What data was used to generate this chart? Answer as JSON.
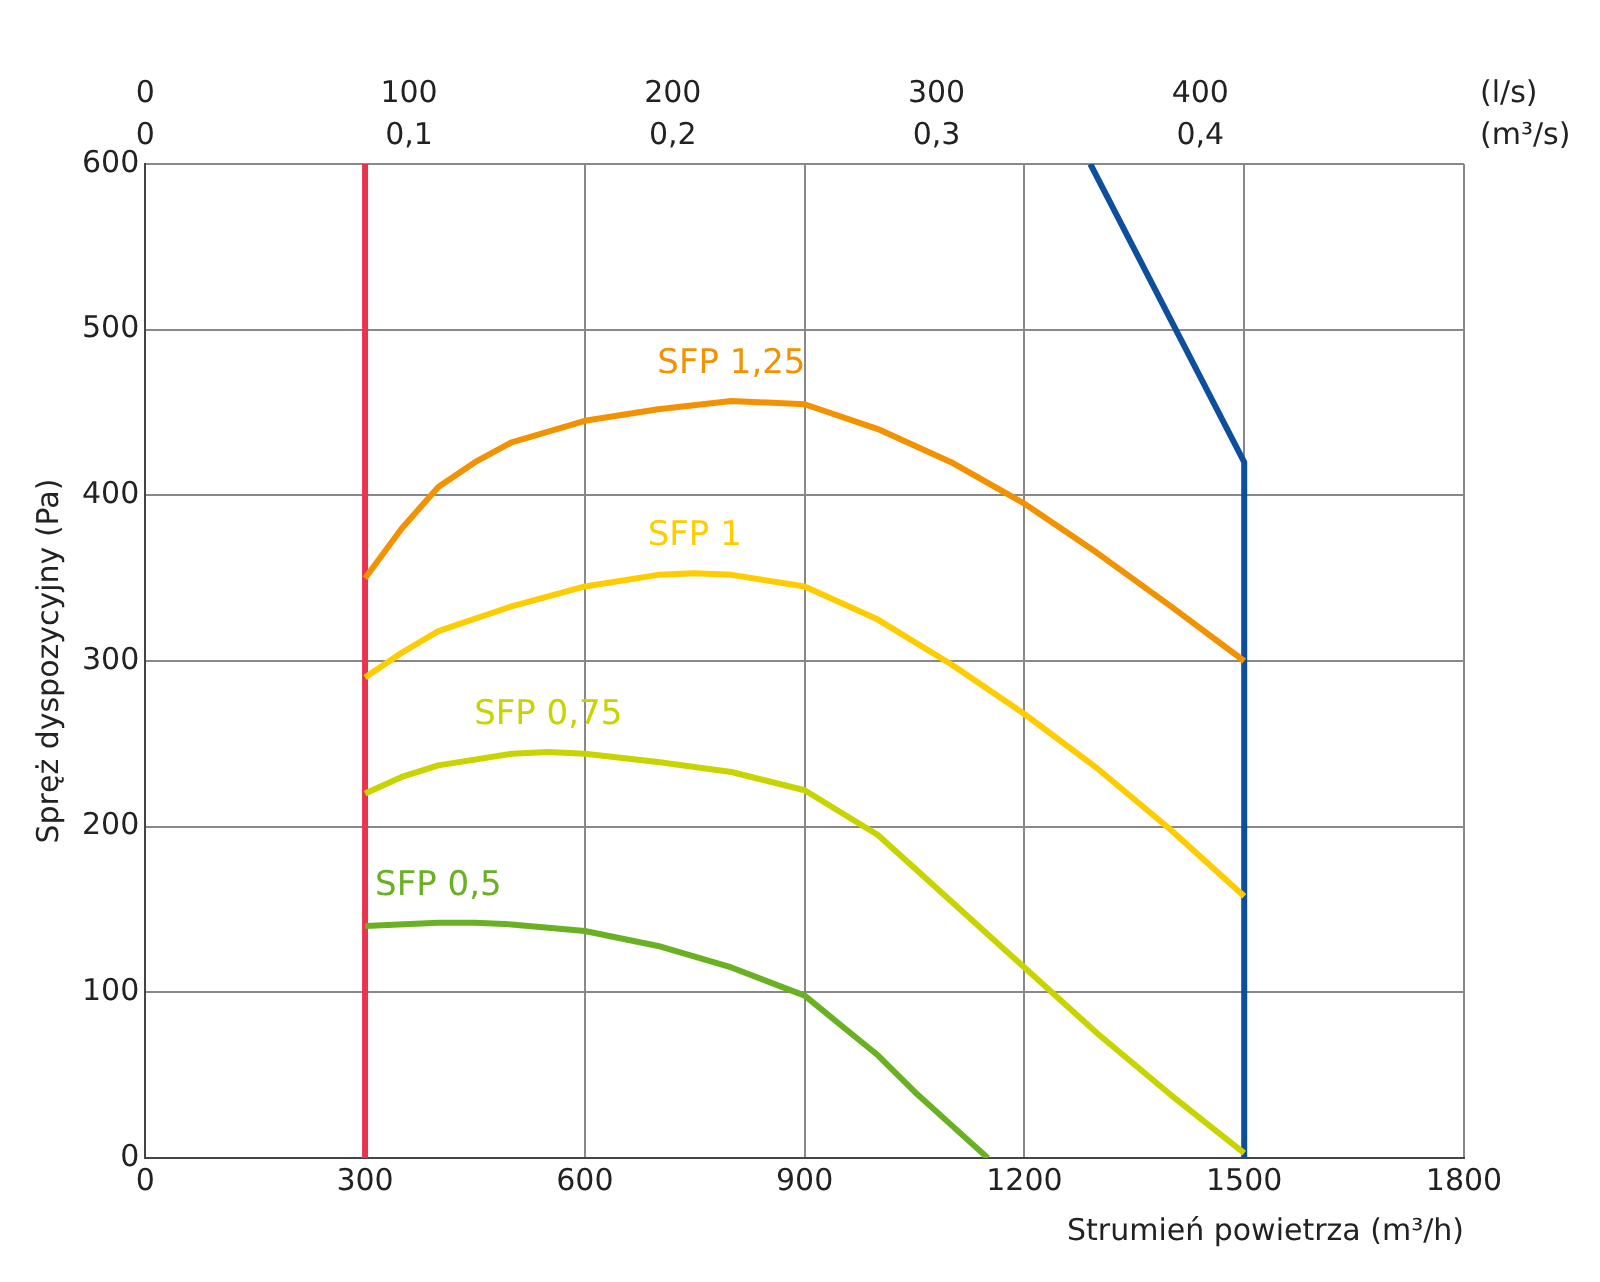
{
  "chart_data": {
    "type": "line",
    "xlabel": "Strumień powietrza (m³/h)",
    "ylabel": "Spręż dyspozycyjny (Pa)",
    "x2label": "(l/s)",
    "annotations": [
      "0",
      "0,1",
      "0,2",
      "0,3",
      "0,4",
      "(m³/s)"
    ],
    "xlim": [
      0,
      1800
    ],
    "xticks": [
      0,
      300,
      600,
      900,
      1200,
      1500,
      1800
    ],
    "ylim": [
      0,
      600
    ],
    "yticks": [
      0,
      100,
      200,
      300,
      400,
      500,
      600
    ],
    "x2lim": [
      0,
      500
    ],
    "x2ticks": [
      0,
      100,
      200,
      300,
      400
    ],
    "grid": true,
    "marker": "none",
    "series": [
      {
        "name": "SFP 1,25",
        "color": "#f39200",
        "x": [
          300,
          350,
          400,
          450,
          500,
          600,
          700,
          800,
          900,
          1000,
          1100,
          1200,
          1300,
          1400,
          1500
        ],
        "values": [
          350,
          380,
          405,
          420,
          432,
          445,
          452,
          457,
          455,
          440,
          420,
          395,
          365,
          333,
          300
        ]
      },
      {
        "name": "SFP 1",
        "color": "#ffcc00",
        "x": [
          300,
          350,
          400,
          500,
          600,
          700,
          750,
          800,
          900,
          1000,
          1100,
          1200,
          1300,
          1400,
          1500
        ],
        "values": [
          290,
          305,
          318,
          333,
          345,
          352,
          353,
          352,
          345,
          325,
          298,
          268,
          235,
          198,
          158
        ]
      },
      {
        "name": "SFP 0,75",
        "color": "#c8d400",
        "x": [
          300,
          350,
          400,
          500,
          550,
          600,
          700,
          800,
          900,
          1000,
          1100,
          1200,
          1300,
          1400,
          1500
        ],
        "values": [
          220,
          230,
          237,
          244,
          245,
          244,
          239,
          233,
          222,
          195,
          155,
          115,
          75,
          38,
          3
        ]
      },
      {
        "name": "SFP 0,5",
        "color": "#6ab023",
        "x": [
          300,
          400,
          450,
          500,
          600,
          700,
          800,
          900,
          950,
          1000,
          1050,
          1100,
          1150
        ],
        "values": [
          140,
          142,
          142,
          141,
          137,
          128,
          115,
          98,
          80,
          62,
          40,
          20,
          0
        ]
      },
      {
        "color": "#e8344e",
        "x": [
          300,
          300
        ],
        "values": [
          0,
          600
        ]
      },
      {
        "color": "#0d4f9c",
        "x": [
          1290,
          1500,
          1500
        ],
        "values": [
          600,
          420,
          0
        ]
      }
    ]
  }
}
